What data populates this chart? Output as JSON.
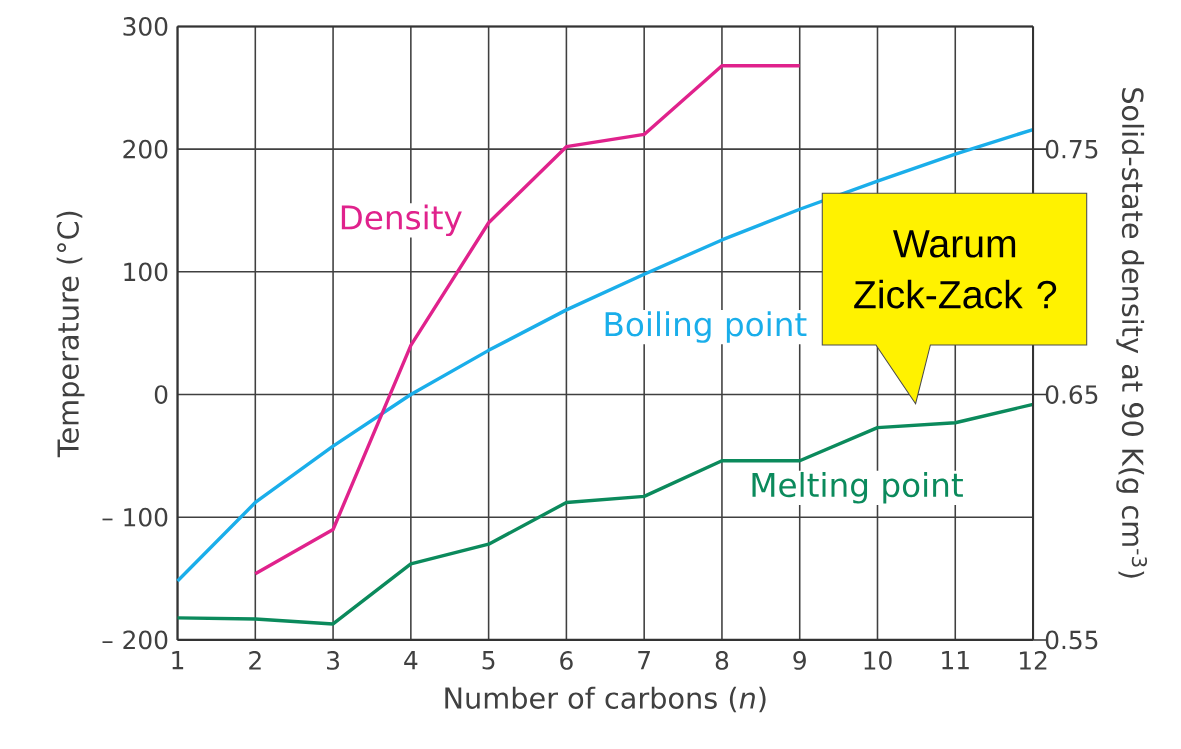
{
  "chart_data": {
    "type": "line",
    "xlabel": "Number of carbons (*n*)",
    "ylabel": "Temperature (°C)",
    "y2label": "Solid-state density at 90 K(g cm$^{-3}$)",
    "x": [
      1,
      2,
      3,
      4,
      5,
      6,
      7,
      8,
      9,
      10,
      11,
      12
    ],
    "series": [
      {
        "name": "Boiling point",
        "color": "#1aaeea",
        "values": [
          -152,
          -88,
          -42,
          0,
          36,
          69,
          98,
          126,
          151,
          174,
          196,
          216
        ]
      },
      {
        "name": "Melting point",
        "color": "#0b8a5c",
        "values": [
          -182,
          -183,
          -187,
          -138,
          -122,
          -88,
          -83,
          -54,
          -54,
          -27,
          -23,
          -8
        ]
      },
      {
        "name": "Density",
        "color": "#e0228c",
        "axis": "y2",
        "values": [
          null,
          0.577,
          0.595,
          0.67,
          0.72,
          0.751,
          0.756,
          0.784,
          0.784,
          null,
          null,
          null
        ]
      }
    ],
    "xlim": [
      1,
      12
    ],
    "xticks": [
      1,
      2,
      3,
      4,
      5,
      6,
      7,
      8,
      9,
      10,
      11,
      12
    ],
    "ylim": [
      -200,
      300
    ],
    "yticks": [
      {
        "value": -200,
        "label": "– 200"
      },
      {
        "value": -100,
        "label": "– 100"
      },
      0,
      100,
      200,
      300
    ],
    "y2lim": [
      0.55,
      0.8
    ],
    "y2ticks": [
      0.55,
      0.65,
      0.75
    ],
    "grid": true,
    "annotations": [
      "Warum Zick-Zack ?"
    ]
  }
}
